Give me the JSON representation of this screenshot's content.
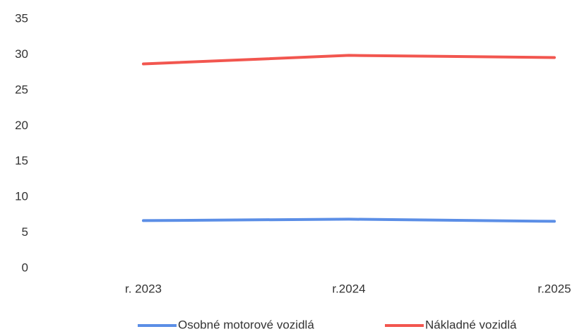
{
  "chart_data": {
    "type": "line",
    "categories": [
      "r. 2023",
      "r.2024",
      "r.2025"
    ],
    "series": [
      {
        "name": "Osobné motorové vozidlá",
        "color": "#5b8ee6",
        "values": [
          6.7,
          6.9,
          6.6
        ]
      },
      {
        "name": "Nákladné vozidlá",
        "color": "#f2564f",
        "values": [
          28.7,
          29.9,
          29.6
        ]
      }
    ],
    "ylim": [
      0,
      35
    ],
    "yticks": [
      0,
      5,
      10,
      15,
      20,
      25,
      30,
      35
    ],
    "grid": false,
    "legend": "bottom"
  }
}
